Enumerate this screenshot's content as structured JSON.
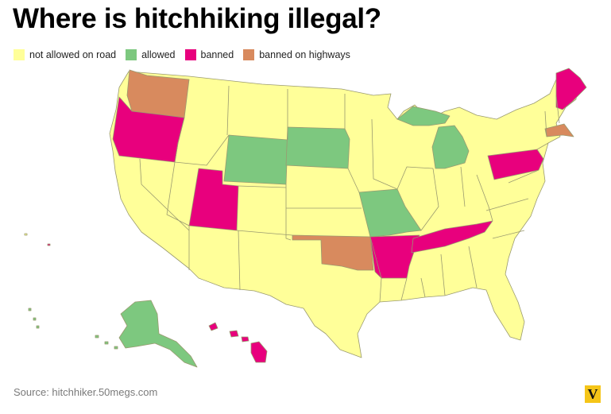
{
  "title": "Where is hitchhiking illegal?",
  "legend": [
    {
      "label": "not allowed on road",
      "color": "#ffff99"
    },
    {
      "label": "allowed",
      "color": "#7dc87f"
    },
    {
      "label": "banned",
      "color": "#e8007d"
    },
    {
      "label": "banned on highways",
      "color": "#d88a5e"
    }
  ],
  "states": {
    "allowed": [
      "Wyoming",
      "South Dakota",
      "Missouri",
      "Michigan",
      "Alaska"
    ],
    "banned": [
      "Oregon",
      "Utah",
      "Arkansas",
      "Tennessee",
      "Pennsylvania",
      "Maine",
      "Hawaii"
    ],
    "banned_on_highways": [
      "Washington",
      "Oklahoma",
      "Massachusetts"
    ],
    "not_allowed_on_road": "all other states"
  },
  "source": "Source: hitchhiker.50megs.com",
  "logo_text": "V"
}
